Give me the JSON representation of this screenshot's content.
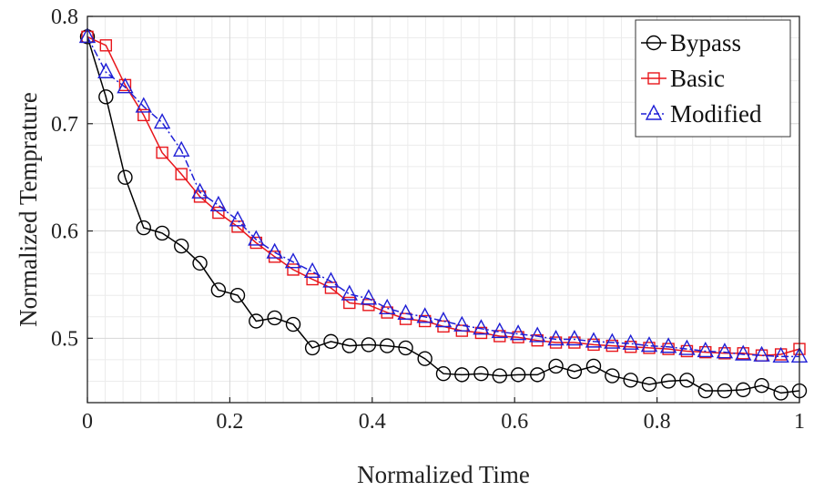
{
  "chart_data": {
    "type": "line",
    "title": "",
    "xlabel": "Normalized Time",
    "ylabel": "Normalized Temprature",
    "xlim": [
      0,
      1
    ],
    "ylim": [
      0.44,
      0.8
    ],
    "xticks": [
      0,
      0.2,
      0.4,
      0.6,
      0.8,
      1
    ],
    "xtick_labels": [
      "0",
      "0.2",
      "0.4",
      "0.6",
      "0.8",
      "1"
    ],
    "yticks": [
      0.5,
      0.6,
      0.7,
      0.8
    ],
    "ytick_labels": [
      "0.5",
      "0.6",
      "0.7",
      "0.8"
    ],
    "grid": true,
    "minor_grid": true,
    "legend_position": "top-right",
    "series": [
      {
        "name": "Bypass",
        "color": "#000000",
        "marker": "circle",
        "line_style": "solid",
        "x": [
          0,
          0.026,
          0.053,
          0.079,
          0.105,
          0.132,
          0.158,
          0.184,
          0.211,
          0.237,
          0.263,
          0.289,
          0.316,
          0.342,
          0.368,
          0.395,
          0.421,
          0.447,
          0.474,
          0.5,
          0.526,
          0.553,
          0.579,
          0.605,
          0.632,
          0.658,
          0.684,
          0.711,
          0.737,
          0.763,
          0.789,
          0.816,
          0.842,
          0.868,
          0.895,
          0.921,
          0.947,
          0.974,
          1.0
        ],
        "y": [
          0.781,
          0.725,
          0.65,
          0.603,
          0.598,
          0.586,
          0.57,
          0.545,
          0.54,
          0.516,
          0.519,
          0.513,
          0.491,
          0.497,
          0.493,
          0.494,
          0.493,
          0.491,
          0.481,
          0.467,
          0.466,
          0.467,
          0.465,
          0.466,
          0.466,
          0.474,
          0.469,
          0.474,
          0.465,
          0.461,
          0.457,
          0.46,
          0.461,
          0.451,
          0.451,
          0.452,
          0.456,
          0.449,
          0.451
        ]
      },
      {
        "name": "Basic",
        "color": "#e8161b",
        "marker": "square",
        "line_style": "solid",
        "x": [
          0,
          0.026,
          0.053,
          0.079,
          0.105,
          0.132,
          0.158,
          0.184,
          0.211,
          0.237,
          0.263,
          0.289,
          0.316,
          0.342,
          0.368,
          0.395,
          0.421,
          0.447,
          0.474,
          0.5,
          0.526,
          0.553,
          0.579,
          0.605,
          0.632,
          0.658,
          0.684,
          0.711,
          0.737,
          0.763,
          0.789,
          0.816,
          0.842,
          0.868,
          0.895,
          0.921,
          0.947,
          0.974,
          1.0
        ],
        "y": [
          0.781,
          0.773,
          0.736,
          0.708,
          0.673,
          0.653,
          0.632,
          0.617,
          0.604,
          0.589,
          0.576,
          0.564,
          0.555,
          0.547,
          0.533,
          0.531,
          0.524,
          0.518,
          0.516,
          0.511,
          0.507,
          0.505,
          0.502,
          0.501,
          0.498,
          0.496,
          0.496,
          0.494,
          0.493,
          0.492,
          0.491,
          0.49,
          0.488,
          0.487,
          0.486,
          0.486,
          0.484,
          0.485,
          0.49
        ]
      },
      {
        "name": "Modified",
        "color": "#1f1fd6",
        "marker": "triangle",
        "line_style": "dashdot",
        "x": [
          0,
          0.026,
          0.053,
          0.079,
          0.105,
          0.132,
          0.158,
          0.184,
          0.211,
          0.237,
          0.263,
          0.289,
          0.316,
          0.342,
          0.368,
          0.395,
          0.421,
          0.447,
          0.474,
          0.5,
          0.526,
          0.553,
          0.579,
          0.605,
          0.632,
          0.658,
          0.684,
          0.711,
          0.737,
          0.763,
          0.789,
          0.816,
          0.842,
          0.868,
          0.895,
          0.921,
          0.947,
          0.974,
          1.0
        ],
        "y": [
          0.781,
          0.748,
          0.734,
          0.716,
          0.701,
          0.675,
          0.636,
          0.624,
          0.61,
          0.592,
          0.58,
          0.571,
          0.562,
          0.553,
          0.541,
          0.537,
          0.528,
          0.523,
          0.52,
          0.516,
          0.512,
          0.509,
          0.506,
          0.504,
          0.502,
          0.499,
          0.499,
          0.497,
          0.496,
          0.495,
          0.493,
          0.492,
          0.49,
          0.488,
          0.487,
          0.485,
          0.484,
          0.483,
          0.483
        ]
      }
    ]
  }
}
